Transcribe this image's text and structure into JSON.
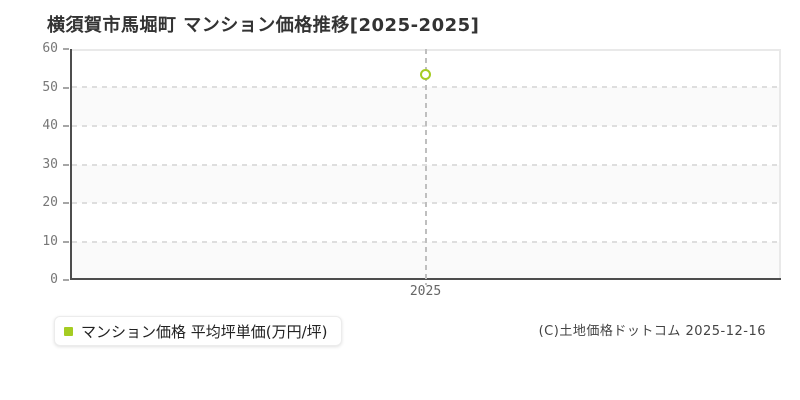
{
  "chart_data": {
    "type": "scatter",
    "title": "横須賀市馬堀町 マンション価格推移[2025-2025]",
    "categories": [
      "2025"
    ],
    "series": [
      {
        "name": "マンション価格 平均坪単価(万円/坪)",
        "values": [
          53.5
        ]
      }
    ],
    "xlabel": "",
    "ylabel": "",
    "ylim": [
      0,
      60
    ],
    "yticks": [
      0,
      10,
      20,
      30,
      40,
      50,
      60
    ],
    "grid": "horizontal-dashed",
    "legend_position": "bottom-left",
    "marker": "open-circle",
    "colors": {
      "series": "#a5cc22",
      "hgrid": "#dedede",
      "vgrid": "#bfbfbf",
      "axis": "#4d4d4d",
      "border_light": "#e9e9e9",
      "stripe": "#fafafa",
      "y_tick_label": "#777777",
      "x_tick_label": "#666666",
      "tick_mark": "#a6a6a6",
      "title": "#333333"
    }
  },
  "footer": {
    "copyright": "(C)土地価格ドットコム 2025-12-16"
  }
}
